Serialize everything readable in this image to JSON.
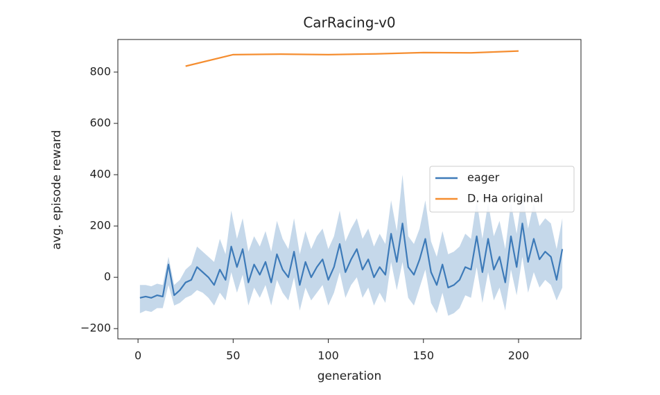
{
  "chart_data": {
    "type": "line",
    "title": "CarRacing-v0",
    "x_label": "generation",
    "y_label": "avg. episode reward",
    "xlim": [
      -10.6,
      232.8
    ],
    "ylim": [
      -240,
      927
    ],
    "xticks": [
      0,
      50,
      100,
      150,
      200
    ],
    "yticks": [
      {
        "value": -200,
        "label": "−200"
      },
      0,
      200,
      400,
      600,
      800
    ],
    "legend": "center right",
    "series": [
      {
        "name": "eager",
        "color": "#3d7ab8",
        "band_color": "#c5d8ea",
        "x": [
          1,
          4,
          7,
          10,
          13,
          16,
          19,
          22,
          25,
          28,
          31,
          34,
          37,
          40,
          43,
          46,
          49,
          52,
          55,
          58,
          61,
          64,
          67,
          70,
          73,
          76,
          79,
          82,
          85,
          88,
          91,
          94,
          97,
          100,
          103,
          106,
          109,
          112,
          115,
          118,
          121,
          124,
          127,
          130,
          133,
          136,
          139,
          142,
          145,
          148,
          151,
          154,
          157,
          160,
          163,
          166,
          169,
          172,
          175,
          178,
          181,
          184,
          187,
          190,
          193,
          196,
          199,
          202,
          205,
          208,
          211,
          214,
          217,
          220,
          223
        ],
        "values": [
          -80,
          -75,
          -80,
          -70,
          -75,
          50,
          -70,
          -50,
          -20,
          -10,
          40,
          20,
          0,
          -30,
          30,
          -10,
          120,
          40,
          110,
          -20,
          50,
          10,
          60,
          -20,
          90,
          30,
          0,
          100,
          -30,
          60,
          0,
          40,
          70,
          -10,
          40,
          130,
          20,
          70,
          110,
          30,
          70,
          0,
          40,
          10,
          170,
          60,
          210,
          40,
          10,
          70,
          150,
          20,
          -30,
          50,
          -40,
          -30,
          -10,
          40,
          30,
          160,
          20,
          150,
          30,
          80,
          -20,
          160,
          40,
          210,
          60,
          150,
          70,
          100,
          80,
          -10,
          110
        ],
        "upper": [
          -30,
          -30,
          -35,
          -25,
          -30,
          80,
          -30,
          -10,
          30,
          50,
          120,
          100,
          80,
          60,
          150,
          90,
          260,
          150,
          230,
          100,
          160,
          120,
          180,
          100,
          220,
          150,
          110,
          230,
          90,
          180,
          110,
          160,
          190,
          110,
          160,
          260,
          140,
          190,
          230,
          150,
          190,
          120,
          170,
          130,
          300,
          180,
          400,
          160,
          130,
          190,
          300,
          140,
          80,
          180,
          90,
          100,
          120,
          170,
          150,
          300,
          150,
          290,
          160,
          220,
          110,
          290,
          170,
          330,
          190,
          290,
          200,
          230,
          210,
          110,
          230
        ],
        "lower": [
          -140,
          -130,
          -135,
          -120,
          -120,
          -30,
          -110,
          -100,
          -80,
          -70,
          -50,
          -60,
          -80,
          -110,
          -60,
          -90,
          20,
          -60,
          10,
          -110,
          -40,
          -80,
          -30,
          -110,
          -10,
          -60,
          -90,
          0,
          -130,
          -40,
          -90,
          -60,
          -30,
          -110,
          -60,
          20,
          -80,
          -30,
          0,
          -80,
          -40,
          -110,
          -60,
          -100,
          60,
          -50,
          60,
          -80,
          -110,
          -40,
          30,
          -100,
          -140,
          -60,
          -150,
          -140,
          -120,
          -70,
          -80,
          40,
          -100,
          20,
          -90,
          -40,
          -130,
          30,
          -70,
          80,
          -60,
          20,
          -40,
          -10,
          -30,
          -90,
          -40
        ]
      },
      {
        "name": "D. Ha original",
        "color": "#f58d2f",
        "x": [
          25,
          50,
          75,
          100,
          125,
          150,
          175,
          200
        ],
        "values": [
          823,
          868,
          870,
          868,
          871,
          876,
          875,
          882
        ]
      }
    ]
  }
}
